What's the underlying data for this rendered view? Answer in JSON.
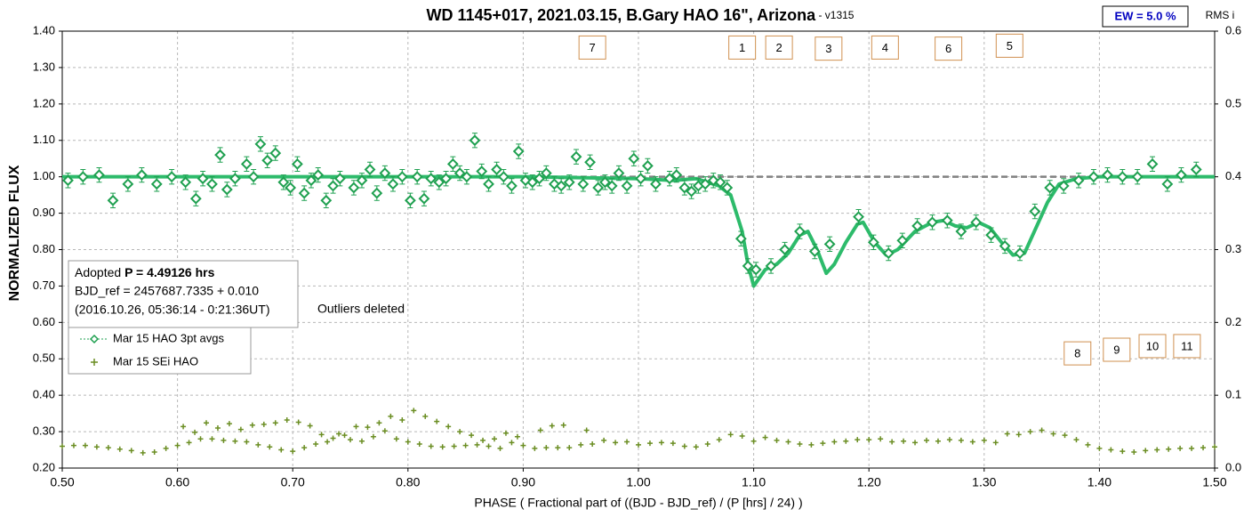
{
  "chart_data": {
    "type": "scatter",
    "title": "WD 1145+017, 2021.03.15, B.Gary HAO 16\", Arizona",
    "title_suffix": " - v1315",
    "ew_label": "EW = 5.0 %",
    "xlabel": "PHASE ( Fractional part of ((BJD - BJD_ref) / (P [hrs] / 24) )",
    "ylabel": "NORMALIZED FLUX",
    "y2label": "RMS i",
    "info": {
      "prefix": "Adopted ",
      "period": "P = 4.49126 hrs",
      "line2": "BJD_ref = 2457687.7335 + 0.010",
      "line3": "(2016.10.26, 05:36:14 - 0:21:36UT)"
    },
    "note": "Outliers deleted",
    "grid": true,
    "legend": "lower left",
    "xlim": [
      0.5,
      1.5
    ],
    "xticks": [
      {
        "value": 0.5,
        "label": "0.50"
      },
      {
        "value": 0.6,
        "label": "0.60"
      },
      {
        "value": 0.7,
        "label": "0.70"
      },
      {
        "value": 0.8,
        "label": "0.80"
      },
      {
        "value": 0.9,
        "label": "0.90"
      },
      {
        "value": 1.0,
        "label": "1.00"
      },
      {
        "value": 1.1,
        "label": "1.10"
      },
      {
        "value": 1.2,
        "label": "1.20"
      },
      {
        "value": 1.3,
        "label": "1.30"
      },
      {
        "value": 1.4,
        "label": "1.40"
      },
      {
        "value": 1.5,
        "label": "1.50"
      }
    ],
    "ylim": [
      0.2,
      1.4
    ],
    "yticks": [
      {
        "value": 0.2,
        "label": "0.20"
      },
      {
        "value": 0.3,
        "label": "0.30"
      },
      {
        "value": 0.4,
        "label": "0.40"
      },
      {
        "value": 0.5,
        "label": "0.50"
      },
      {
        "value": 0.6,
        "label": "0.60"
      },
      {
        "value": 0.7,
        "label": "0.70"
      },
      {
        "value": 0.8,
        "label": "0.80"
      },
      {
        "value": 0.9,
        "label": "0.90"
      },
      {
        "value": 1.0,
        "label": "1.00"
      },
      {
        "value": 1.1,
        "label": "1.10"
      },
      {
        "value": 1.2,
        "label": "1.20"
      },
      {
        "value": 1.3,
        "label": "1.30"
      },
      {
        "value": 1.4,
        "label": "1.40"
      }
    ],
    "y2lim": [
      0,
      0.6
    ],
    "y2ticks": [
      {
        "value": 0,
        "label": "0.0"
      },
      0.1,
      0.2,
      0.3,
      0.4,
      0.5,
      0.6
    ],
    "reference_line": 1.0,
    "series": [
      {
        "name": "Mar 15 HAO 3pt avgs",
        "color": "#1fa050",
        "error": 0.02,
        "x": [
          0.505,
          0.518,
          0.532,
          0.544,
          0.557,
          0.569,
          0.582,
          0.595,
          0.607,
          0.616,
          0.622,
          0.63,
          0.637,
          0.643,
          0.65,
          0.66,
          0.666,
          0.672,
          0.678,
          0.685,
          0.692,
          0.698,
          0.704,
          0.71,
          0.716,
          0.722,
          0.729,
          0.735,
          0.741,
          0.753,
          0.76,
          0.767,
          0.773,
          0.78,
          0.787,
          0.795,
          0.802,
          0.808,
          0.814,
          0.82,
          0.827,
          0.833,
          0.839,
          0.845,
          0.851,
          0.858,
          0.864,
          0.87,
          0.877,
          0.883,
          0.89,
          0.896,
          0.902,
          0.908,
          0.914,
          0.92,
          0.927,
          0.933,
          0.94,
          0.946,
          0.952,
          0.958,
          0.965,
          0.971,
          0.977,
          0.983,
          0.99,
          0.996,
          1.002,
          1.008,
          1.015,
          1.027,
          1.033,
          1.04,
          1.046,
          1.052,
          1.058,
          1.065,
          1.071,
          1.077,
          1.089,
          1.095,
          1.102,
          1.115,
          1.127,
          1.14,
          1.153,
          1.166,
          1.191,
          1.204,
          1.217,
          1.229,
          1.242,
          1.255,
          1.268,
          1.28,
          1.293,
          1.306,
          1.318,
          1.331,
          1.344,
          1.357,
          1.369,
          1.382,
          1.395,
          1.407,
          1.42,
          1.433,
          1.446,
          1.459,
          1.471,
          1.484
        ],
        "values": [
          0.99,
          1.0,
          1.005,
          0.935,
          0.98,
          1.005,
          0.98,
          1.0,
          0.985,
          0.94,
          0.995,
          0.98,
          1.06,
          0.965,
          0.995,
          1.035,
          1.0,
          1.09,
          1.045,
          1.065,
          0.985,
          0.97,
          1.035,
          0.955,
          0.99,
          1.005,
          0.935,
          0.975,
          0.995,
          0.97,
          0.99,
          1.02,
          0.955,
          1.01,
          0.98,
          1.0,
          0.935,
          1.0,
          0.94,
          0.995,
          0.985,
          0.995,
          1.035,
          1.01,
          1.0,
          1.1,
          1.015,
          0.98,
          1.02,
          1.0,
          0.975,
          1.07,
          0.99,
          0.985,
          0.995,
          1.01,
          0.98,
          0.975,
          0.985,
          1.055,
          0.98,
          1.04,
          0.97,
          0.985,
          0.975,
          1.01,
          0.975,
          1.05,
          0.995,
          1.03,
          0.98,
          0.995,
          1.005,
          0.97,
          0.96,
          0.975,
          0.98,
          0.99,
          0.985,
          0.97,
          0.83,
          0.755,
          0.745,
          0.755,
          0.8,
          0.85,
          0.795,
          0.815,
          0.89,
          0.82,
          0.79,
          0.825,
          0.865,
          0.875,
          0.88,
          0.85,
          0.875,
          0.84,
          0.81,
          0.79,
          0.905,
          0.97,
          0.975,
          0.99,
          1.0,
          1.005,
          1.0,
          1.0,
          1.035,
          0.98,
          1.005,
          1.02
        ]
      },
      {
        "name": "Mar 15 SEi HAO",
        "color": "#6b8e23",
        "axis": "y2",
        "x": [
          0.5,
          0.51,
          0.52,
          0.53,
          0.54,
          0.55,
          0.56,
          0.57,
          0.58,
          0.59,
          0.6,
          0.605,
          0.61,
          0.615,
          0.62,
          0.625,
          0.63,
          0.635,
          0.64,
          0.645,
          0.65,
          0.655,
          0.66,
          0.665,
          0.67,
          0.675,
          0.68,
          0.685,
          0.69,
          0.695,
          0.7,
          0.705,
          0.71,
          0.715,
          0.72,
          0.725,
          0.73,
          0.735,
          0.74,
          0.745,
          0.75,
          0.755,
          0.76,
          0.765,
          0.77,
          0.775,
          0.78,
          0.785,
          0.79,
          0.795,
          0.8,
          0.805,
          0.81,
          0.815,
          0.82,
          0.825,
          0.83,
          0.835,
          0.84,
          0.845,
          0.85,
          0.855,
          0.86,
          0.865,
          0.87,
          0.875,
          0.88,
          0.885,
          0.89,
          0.895,
          0.9,
          0.91,
          0.915,
          0.92,
          0.925,
          0.93,
          0.935,
          0.94,
          0.95,
          0.955,
          0.96,
          0.97,
          0.98,
          0.99,
          1.0,
          1.01,
          1.02,
          1.03,
          1.04,
          1.05,
          1.06,
          1.07,
          1.08,
          1.09,
          1.1,
          1.11,
          1.12,
          1.13,
          1.14,
          1.15,
          1.16,
          1.17,
          1.18,
          1.19,
          1.2,
          1.21,
          1.22,
          1.23,
          1.24,
          1.25,
          1.26,
          1.27,
          1.28,
          1.29,
          1.3,
          1.31,
          1.32,
          1.33,
          1.34,
          1.35,
          1.36,
          1.37,
          1.38,
          1.39,
          1.4,
          1.41,
          1.42,
          1.43,
          1.44,
          1.45,
          1.46,
          1.47,
          1.48,
          1.49,
          1.5
        ],
        "values": [
          0.03,
          0.031,
          0.031,
          0.029,
          0.028,
          0.026,
          0.024,
          0.021,
          0.022,
          0.027,
          0.031,
          0.057,
          0.035,
          0.049,
          0.04,
          0.062,
          0.04,
          0.055,
          0.038,
          0.061,
          0.037,
          0.053,
          0.036,
          0.059,
          0.032,
          0.06,
          0.029,
          0.062,
          0.025,
          0.066,
          0.023,
          0.063,
          0.028,
          0.058,
          0.033,
          0.046,
          0.036,
          0.041,
          0.047,
          0.045,
          0.039,
          0.057,
          0.037,
          0.056,
          0.043,
          0.062,
          0.051,
          0.071,
          0.04,
          0.066,
          0.036,
          0.079,
          0.033,
          0.071,
          0.03,
          0.064,
          0.029,
          0.057,
          0.03,
          0.05,
          0.031,
          0.045,
          0.032,
          0.038,
          0.03,
          0.04,
          0.027,
          0.048,
          0.035,
          0.043,
          0.031,
          0.027,
          0.052,
          0.028,
          0.058,
          0.028,
          0.059,
          0.028,
          0.032,
          0.052,
          0.033,
          0.038,
          0.035,
          0.036,
          0.032,
          0.034,
          0.035,
          0.034,
          0.03,
          0.029,
          0.033,
          0.039,
          0.046,
          0.044,
          0.037,
          0.042,
          0.038,
          0.036,
          0.033,
          0.032,
          0.034,
          0.036,
          0.037,
          0.039,
          0.039,
          0.04,
          0.036,
          0.037,
          0.035,
          0.038,
          0.037,
          0.039,
          0.038,
          0.036,
          0.038,
          0.035,
          0.047,
          0.046,
          0.05,
          0.052,
          0.047,
          0.045,
          0.039,
          0.032,
          0.027,
          0.025,
          0.023,
          0.022,
          0.024,
          0.025,
          0.026,
          0.027,
          0.027,
          0.028,
          0.029
        ]
      }
    ],
    "fit": {
      "color": "#2dbb6b",
      "x": [
        0.5,
        0.7,
        0.9,
        1.0,
        1.03,
        1.05,
        1.06,
        1.07,
        1.08,
        1.09,
        1.095,
        1.1,
        1.11,
        1.12,
        1.13,
        1.14,
        1.147,
        1.155,
        1.163,
        1.17,
        1.18,
        1.19,
        1.195,
        1.205,
        1.215,
        1.225,
        1.24,
        1.255,
        1.265,
        1.275,
        1.285,
        1.295,
        1.305,
        1.315,
        1.325,
        1.335,
        1.345,
        1.355,
        1.365,
        1.38,
        1.4,
        1.5
      ],
      "values": [
        1.0,
        1.0,
        1.0,
        0.995,
        0.99,
        0.995,
        0.985,
        0.975,
        0.95,
        0.85,
        0.76,
        0.7,
        0.745,
        0.76,
        0.79,
        0.84,
        0.85,
        0.8,
        0.735,
        0.76,
        0.82,
        0.87,
        0.875,
        0.82,
        0.785,
        0.8,
        0.85,
        0.875,
        0.88,
        0.865,
        0.86,
        0.875,
        0.86,
        0.82,
        0.785,
        0.79,
        0.86,
        0.93,
        0.98,
        0.995,
        1.0,
        1.0
      ]
    },
    "boxes": [
      {
        "label": "7",
        "x": 0.96,
        "y": 1.355
      },
      {
        "label": "1",
        "x": 1.09,
        "y": 1.355
      },
      {
        "label": "2",
        "x": 1.122,
        "y": 1.355
      },
      {
        "label": "3",
        "x": 1.165,
        "y": 1.352
      },
      {
        "label": "4",
        "x": 1.214,
        "y": 1.355
      },
      {
        "label": "6",
        "x": 1.269,
        "y": 1.352
      },
      {
        "label": "5",
        "x": 1.322,
        "y": 1.36
      },
      {
        "label": "8",
        "x": 1.381,
        "y": 0.515
      },
      {
        "label": "9",
        "x": 1.415,
        "y": 0.525
      },
      {
        "label": "10",
        "x": 1.446,
        "y": 0.535
      },
      {
        "label": "11",
        "x": 1.476,
        "y": 0.535
      }
    ]
  }
}
